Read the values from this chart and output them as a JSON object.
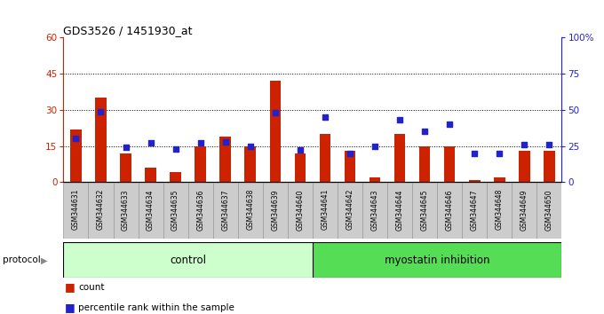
{
  "title": "GDS3526 / 1451930_at",
  "samples": [
    "GSM344631",
    "GSM344632",
    "GSM344633",
    "GSM344634",
    "GSM344635",
    "GSM344636",
    "GSM344637",
    "GSM344638",
    "GSM344639",
    "GSM344640",
    "GSM344641",
    "GSM344642",
    "GSM344643",
    "GSM344644",
    "GSM344645",
    "GSM344646",
    "GSM344647",
    "GSM344648",
    "GSM344649",
    "GSM344650"
  ],
  "count": [
    22,
    35,
    12,
    6,
    4,
    15,
    19,
    15,
    42,
    12,
    20,
    13,
    2,
    20,
    15,
    15,
    1,
    2,
    13,
    13
  ],
  "percentile": [
    30,
    49,
    24,
    27,
    23,
    27,
    28,
    25,
    48,
    22,
    45,
    20,
    25,
    43,
    35,
    40,
    20,
    20,
    26,
    26
  ],
  "n_control": 10,
  "control_label": "control",
  "myostatin_label": "myostatin inhibition",
  "protocol_label": "protocol",
  "legend_count_label": "count",
  "legend_pct_label": "percentile rank within the sample",
  "bar_color": "#cc2200",
  "dot_color": "#2222cc",
  "left_axis_color": "#cc2200",
  "right_axis_color": "#2222cc",
  "ylim_left": [
    0,
    60
  ],
  "ylim_right": [
    0,
    100
  ],
  "yticks_left": [
    0,
    15,
    30,
    45,
    60
  ],
  "yticks_right": [
    0,
    25,
    50,
    75,
    100
  ],
  "control_bg": "#ccffcc",
  "myostatin_bg": "#55dd55",
  "xtick_bg": "#cccccc",
  "grid_vals": [
    15,
    30,
    45
  ]
}
